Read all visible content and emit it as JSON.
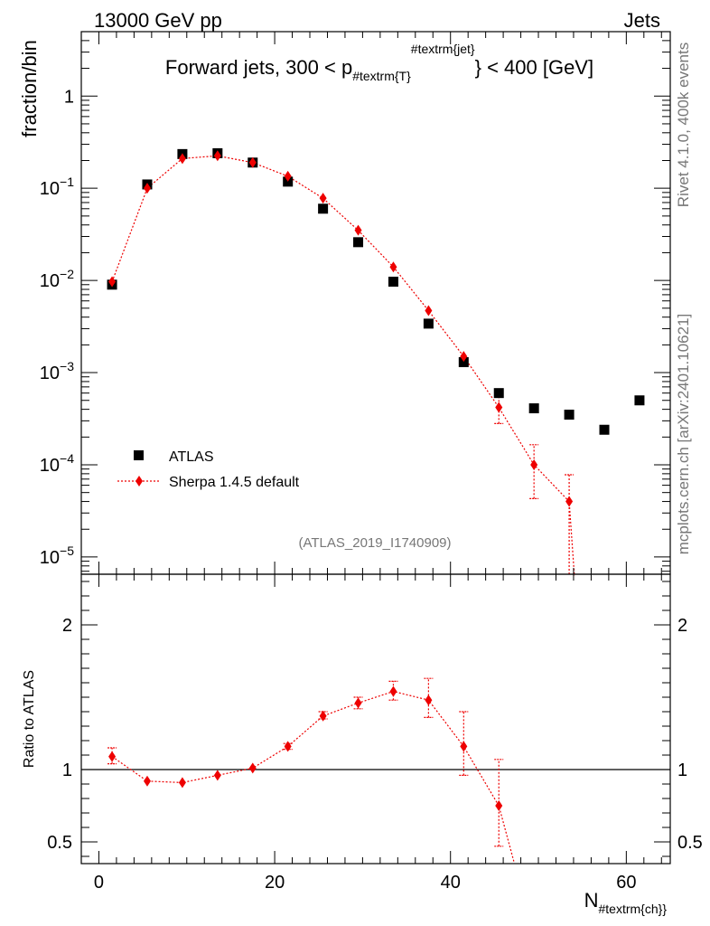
{
  "header": {
    "left": "13000 GeV pp",
    "right": "Jets"
  },
  "side_text": {
    "rivet": "Rivet 4.1.0,  400k events",
    "mcplots": "mcplots.cern.ch [arXiv:2401.10621]"
  },
  "chart_data": [
    {
      "type": "scatter",
      "panel": "main",
      "title_main": "Forward jets, 300 < p",
      "title_sub": "#textrm{T}",
      "title_sup": "#textrm{jet}",
      "title_tail": "} < 400 [GeV]",
      "ylabel": "fraction/bin",
      "yscale": "log",
      "ylim": [
        6.5e-06,
        5
      ],
      "xlim": [
        -2,
        65
      ],
      "y_ticks": [
        {
          "value": 1,
          "base": "1",
          "exp": ""
        },
        {
          "value": 0.1,
          "base": "10",
          "exp": "−1"
        },
        {
          "value": 0.01,
          "base": "10",
          "exp": "−2"
        },
        {
          "value": 0.001,
          "base": "10",
          "exp": "−3"
        },
        {
          "value": 0.0001,
          "base": "10",
          "exp": "−4"
        },
        {
          "value": 1e-05,
          "base": "10",
          "exp": "−5"
        }
      ],
      "watermark": "(ATLAS_2019_I1740909)",
      "legend_position": "bottom-left",
      "series": [
        {
          "name": "ATLAS",
          "color": "#000000",
          "marker": "square",
          "x": [
            1.5,
            5.5,
            9.5,
            13.5,
            17.5,
            21.5,
            25.5,
            29.5,
            33.5,
            37.5,
            41.5,
            45.5,
            49.5,
            53.5,
            57.5,
            61.5
          ],
          "y": [
            0.009,
            0.11,
            0.235,
            0.24,
            0.19,
            0.118,
            0.06,
            0.026,
            0.0097,
            0.0034,
            0.0013,
            0.0006,
            0.00041,
            0.00035,
            0.00024,
            0.0005
          ]
        },
        {
          "name": "Sherpa 1.4.5 default",
          "color": "#ee0000",
          "marker": "diamond",
          "line": "dotted",
          "x": [
            1.5,
            5.5,
            9.5,
            13.5,
            17.5,
            21.5,
            25.5,
            29.5,
            33.5,
            37.5,
            41.5,
            45.5,
            49.5,
            53.5
          ],
          "y": [
            0.0097,
            0.1,
            0.21,
            0.225,
            0.19,
            0.135,
            0.078,
            0.035,
            0.014,
            0.0047,
            0.0015,
            0.00042,
            0.0001,
            4e-05
          ],
          "err_lo": [
            0.0097,
            0.1,
            0.21,
            0.225,
            0.19,
            0.135,
            0.078,
            0.035,
            0.014,
            0.0047,
            0.0015,
            0.00028,
            4.3e-05,
            4.7e-06
          ],
          "err_hi": [
            0.0097,
            0.1,
            0.21,
            0.225,
            0.19,
            0.135,
            0.078,
            0.035,
            0.014,
            0.0047,
            0.0015,
            0.0006,
            0.000165,
            7.8e-05
          ]
        }
      ]
    },
    {
      "type": "scatter",
      "panel": "ratio",
      "ylabel": "Ratio to ATLAS",
      "xlabel": "N",
      "xlabel_sub": "#textrm{ch}}",
      "xlim": [
        -2,
        65
      ],
      "ylim": [
        0.35,
        2.35
      ],
      "x_ticks": [
        0,
        20,
        40,
        60
      ],
      "y_ticks": [
        0.5,
        1,
        2
      ],
      "y_tick_labels": [
        "0.5",
        "1",
        "2"
      ],
      "reference_line": 1,
      "series": [
        {
          "name": "Sherpa 1.4.5 default",
          "color": "#ee0000",
          "marker": "diamond",
          "line": "dotted",
          "x": [
            1.5,
            5.5,
            9.5,
            13.5,
            17.5,
            21.5,
            25.5,
            29.5,
            33.5,
            37.5,
            41.5,
            45.5
          ],
          "y": [
            1.09,
            0.92,
            0.91,
            0.96,
            1.01,
            1.16,
            1.37,
            1.46,
            1.54,
            1.48,
            1.16,
            0.75
          ],
          "err_lo": [
            1.04,
            0.91,
            0.9,
            0.95,
            1.0,
            1.14,
            1.35,
            1.42,
            1.48,
            1.36,
            0.96,
            0.47
          ],
          "err_hi": [
            1.15,
            0.93,
            0.92,
            0.97,
            1.02,
            1.18,
            1.4,
            1.5,
            1.61,
            1.63,
            1.4,
            1.07
          ],
          "continues_to": [
            47.5,
            0.3
          ]
        }
      ]
    }
  ]
}
